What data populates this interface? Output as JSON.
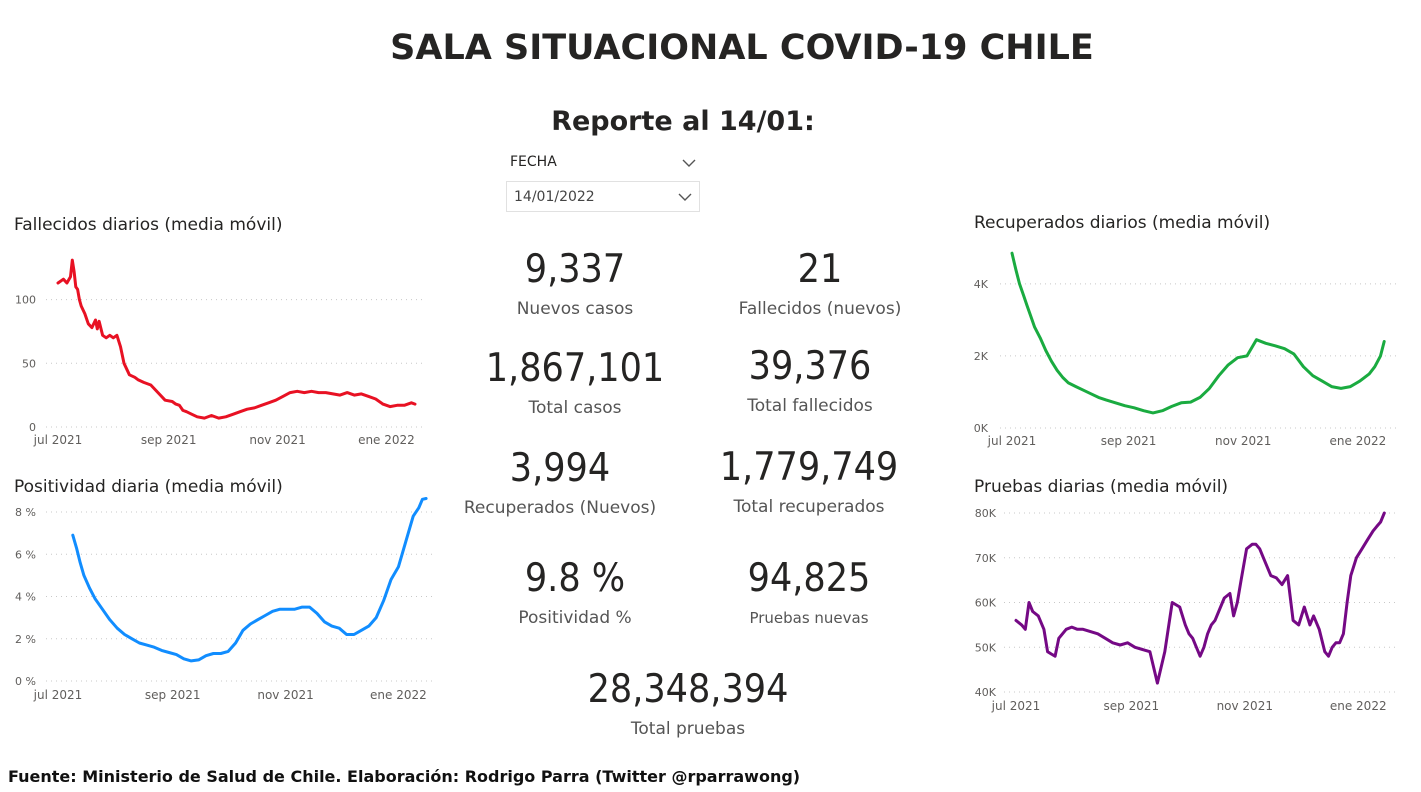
{
  "header": {
    "title": "SALA SITUACIONAL COVID-19 CHILE",
    "subtitle": "Reporte al 14/01:"
  },
  "slicer": {
    "label": "FECHA",
    "value": "14/01/2022"
  },
  "kpis": {
    "nuevos_casos": {
      "value": "9,337",
      "label": "Nuevos casos"
    },
    "fallecidos_nuevos": {
      "value": "21",
      "label": "Fallecidos (nuevos)"
    },
    "total_casos": {
      "value": "1,867,101",
      "label": "Total casos"
    },
    "total_fallecidos": {
      "value": "39,376",
      "label": "Total fallecidos"
    },
    "recuperados_nuevos": {
      "value": "3,994",
      "label": "Recuperados (Nuevos)"
    },
    "total_recuperados": {
      "value": "1,779,749",
      "label": "Total recuperados"
    },
    "positividad": {
      "value": "9.8 %",
      "label": "Positividad %"
    },
    "pruebas_nuevas": {
      "value": "94,825",
      "label": "Pruebas nuevas"
    },
    "total_pruebas": {
      "value": "28,348,394",
      "label": "Total pruebas"
    }
  },
  "footer": "Fuente: Ministerio de Salud de Chile. Elaboración: Rodrigo Parra (Twitter @rparrawong)",
  "chart_data": [
    {
      "id": "fallecidos",
      "type": "line",
      "title": "Fallecidos diarios (media móvil)",
      "color": "#e81123",
      "x_ticks": [
        "jul 2021",
        "sep 2021",
        "nov 2021",
        "ene 2022"
      ],
      "x_range": [
        0,
        200
      ],
      "x_tick_values": [
        0,
        62,
        123,
        184
      ],
      "y_ticks": [
        {
          "v": 0,
          "label": "0"
        },
        {
          "v": 50,
          "label": "50"
        },
        {
          "v": 100,
          "label": "100"
        }
      ],
      "y_range": [
        0,
        135
      ],
      "x": [
        0,
        3,
        5,
        7,
        8,
        9,
        10,
        11,
        12,
        13,
        15,
        17,
        19,
        21,
        22,
        23,
        25,
        27,
        29,
        31,
        33,
        35,
        37,
        40,
        43,
        45,
        48,
        52,
        56,
        60,
        64,
        66,
        68,
        70,
        72,
        75,
        78,
        82,
        86,
        90,
        94,
        98,
        102,
        106,
        110,
        114,
        118,
        122,
        126,
        130,
        134,
        138,
        142,
        146,
        150,
        154,
        158,
        162,
        166,
        170,
        174,
        178,
        182,
        186,
        190,
        194,
        198,
        200
      ],
      "y": [
        113,
        116,
        113,
        118,
        131,
        122,
        110,
        108,
        100,
        95,
        89,
        81,
        78,
        84,
        77,
        83,
        72,
        70,
        72,
        70,
        72,
        63,
        50,
        41,
        39,
        37,
        35,
        33,
        27,
        21,
        20,
        18,
        17,
        13,
        12,
        10,
        8,
        7,
        9,
        7,
        8,
        10,
        12,
        14,
        15,
        17,
        19,
        21,
        24,
        27,
        28,
        27,
        28,
        27,
        27,
        26,
        25,
        27,
        25,
        26,
        24,
        22,
        18,
        16,
        17,
        17,
        19,
        18
      ]
    },
    {
      "id": "positividad",
      "type": "line",
      "title": "Positividad diaria (media móvil)",
      "color": "#118dff",
      "x_ticks": [
        "jul 2021",
        "sep 2021",
        "nov 2021",
        "ene 2022"
      ],
      "x_range": [
        0,
        200
      ],
      "x_tick_values": [
        0,
        62,
        123,
        184
      ],
      "y_ticks": [
        {
          "v": 0,
          "label": "0 %"
        },
        {
          "v": 2,
          "label": "2 %"
        },
        {
          "v": 4,
          "label": "4 %"
        },
        {
          "v": 6,
          "label": "6 %"
        },
        {
          "v": 8,
          "label": "8 %"
        }
      ],
      "y_range": [
        0,
        8
      ],
      "x": [
        8,
        10,
        12,
        14,
        17,
        20,
        24,
        28,
        32,
        36,
        40,
        44,
        48,
        52,
        56,
        60,
        64,
        68,
        72,
        76,
        80,
        84,
        88,
        92,
        96,
        100,
        104,
        108,
        112,
        116,
        120,
        124,
        128,
        132,
        136,
        140,
        144,
        148,
        152,
        156,
        160,
        164,
        168,
        172,
        176,
        180,
        184,
        188,
        192,
        195,
        197,
        199
      ],
      "y": [
        6.9,
        6.3,
        5.6,
        5.0,
        4.4,
        3.9,
        3.4,
        2.9,
        2.5,
        2.2,
        2.0,
        1.8,
        1.7,
        1.6,
        1.45,
        1.35,
        1.25,
        1.05,
        0.95,
        1.0,
        1.2,
        1.3,
        1.3,
        1.4,
        1.8,
        2.4,
        2.7,
        2.9,
        3.1,
        3.3,
        3.4,
        3.4,
        3.4,
        3.5,
        3.5,
        3.2,
        2.8,
        2.6,
        2.5,
        2.2,
        2.2,
        2.4,
        2.6,
        3.0,
        3.8,
        4.8,
        5.4,
        6.6,
        7.8,
        8.2,
        8.6,
        9.0
      ]
    },
    {
      "id": "recuperados",
      "type": "line",
      "title": "Recuperados diarios (media móvil)",
      "color": "#1aab40",
      "x_ticks": [
        "jul 2021",
        "sep 2021",
        "nov 2021",
        "ene 2022"
      ],
      "x_range": [
        0,
        200
      ],
      "x_tick_values": [
        0,
        62,
        123,
        184
      ],
      "y_ticks": [
        {
          "v": 0,
          "label": "0K"
        },
        {
          "v": 2000,
          "label": "2K"
        },
        {
          "v": 4000,
          "label": "4K"
        }
      ],
      "y_range": [
        0,
        4800
      ],
      "x": [
        0,
        2,
        4,
        6,
        8,
        10,
        12,
        15,
        18,
        21,
        24,
        27,
        30,
        34,
        38,
        42,
        46,
        50,
        55,
        60,
        65,
        70,
        75,
        80,
        85,
        90,
        95,
        100,
        105,
        110,
        115,
        120,
        125,
        130,
        135,
        140,
        145,
        150,
        155,
        160,
        165,
        170,
        175,
        180,
        185,
        190,
        193,
        196,
        198
      ],
      "y": [
        4850,
        4400,
        4000,
        3700,
        3400,
        3100,
        2800,
        2500,
        2150,
        1850,
        1600,
        1400,
        1250,
        1150,
        1050,
        950,
        850,
        780,
        700,
        620,
        560,
        480,
        420,
        480,
        600,
        700,
        720,
        850,
        1100,
        1450,
        1750,
        1950,
        2000,
        2450,
        2350,
        2280,
        2200,
        2050,
        1700,
        1450,
        1300,
        1150,
        1100,
        1150,
        1300,
        1500,
        1700,
        2000,
        2400
      ]
    },
    {
      "id": "pruebas",
      "type": "line",
      "title": "Pruebas diarias (media móvil)",
      "color": "#750985",
      "x_ticks": [
        "jul 2021",
        "sep 2021",
        "nov 2021",
        "ene 2022"
      ],
      "x_range": [
        0,
        200
      ],
      "x_tick_values": [
        0,
        62,
        123,
        184
      ],
      "y_ticks": [
        {
          "v": 40000,
          "label": "40K"
        },
        {
          "v": 50000,
          "label": "50K"
        },
        {
          "v": 60000,
          "label": "60K"
        },
        {
          "v": 70000,
          "label": "70K"
        },
        {
          "v": 80000,
          "label": "80K"
        }
      ],
      "y_range": [
        40000,
        80000
      ],
      "x": [
        0,
        3,
        5,
        7,
        9,
        12,
        15,
        17,
        19,
        21,
        23,
        25,
        27,
        30,
        33,
        36,
        40,
        44,
        48,
        52,
        56,
        60,
        64,
        68,
        72,
        76,
        80,
        84,
        88,
        91,
        93,
        95,
        97,
        99,
        101,
        103,
        105,
        107,
        109,
        112,
        115,
        117,
        119,
        121,
        124,
        127,
        129,
        131,
        133,
        135,
        137,
        140,
        143,
        146,
        149,
        152,
        155,
        158,
        160,
        163,
        166,
        168,
        170,
        172,
        174,
        176,
        178,
        180,
        183,
        186,
        189,
        192,
        194,
        196,
        198
      ],
      "y": [
        56000,
        55000,
        54000,
        60000,
        58000,
        57000,
        54000,
        49000,
        48500,
        48000,
        52000,
        53000,
        54000,
        54500,
        54000,
        54000,
        53500,
        53000,
        52000,
        51000,
        50500,
        51000,
        50000,
        49500,
        49000,
        42000,
        49000,
        60000,
        59000,
        55000,
        53000,
        52000,
        50000,
        48000,
        50000,
        53000,
        55000,
        56000,
        58000,
        61000,
        62000,
        57000,
        60000,
        65000,
        72000,
        73000,
        73000,
        72000,
        70000,
        68000,
        66000,
        65500,
        64000,
        66000,
        56000,
        55000,
        59000,
        55000,
        57000,
        54000,
        49000,
        48000,
        50000,
        51000,
        51000,
        53000,
        60000,
        66000,
        70000,
        72000,
        74000,
        76000,
        77000,
        78000,
        80000
      ]
    }
  ]
}
